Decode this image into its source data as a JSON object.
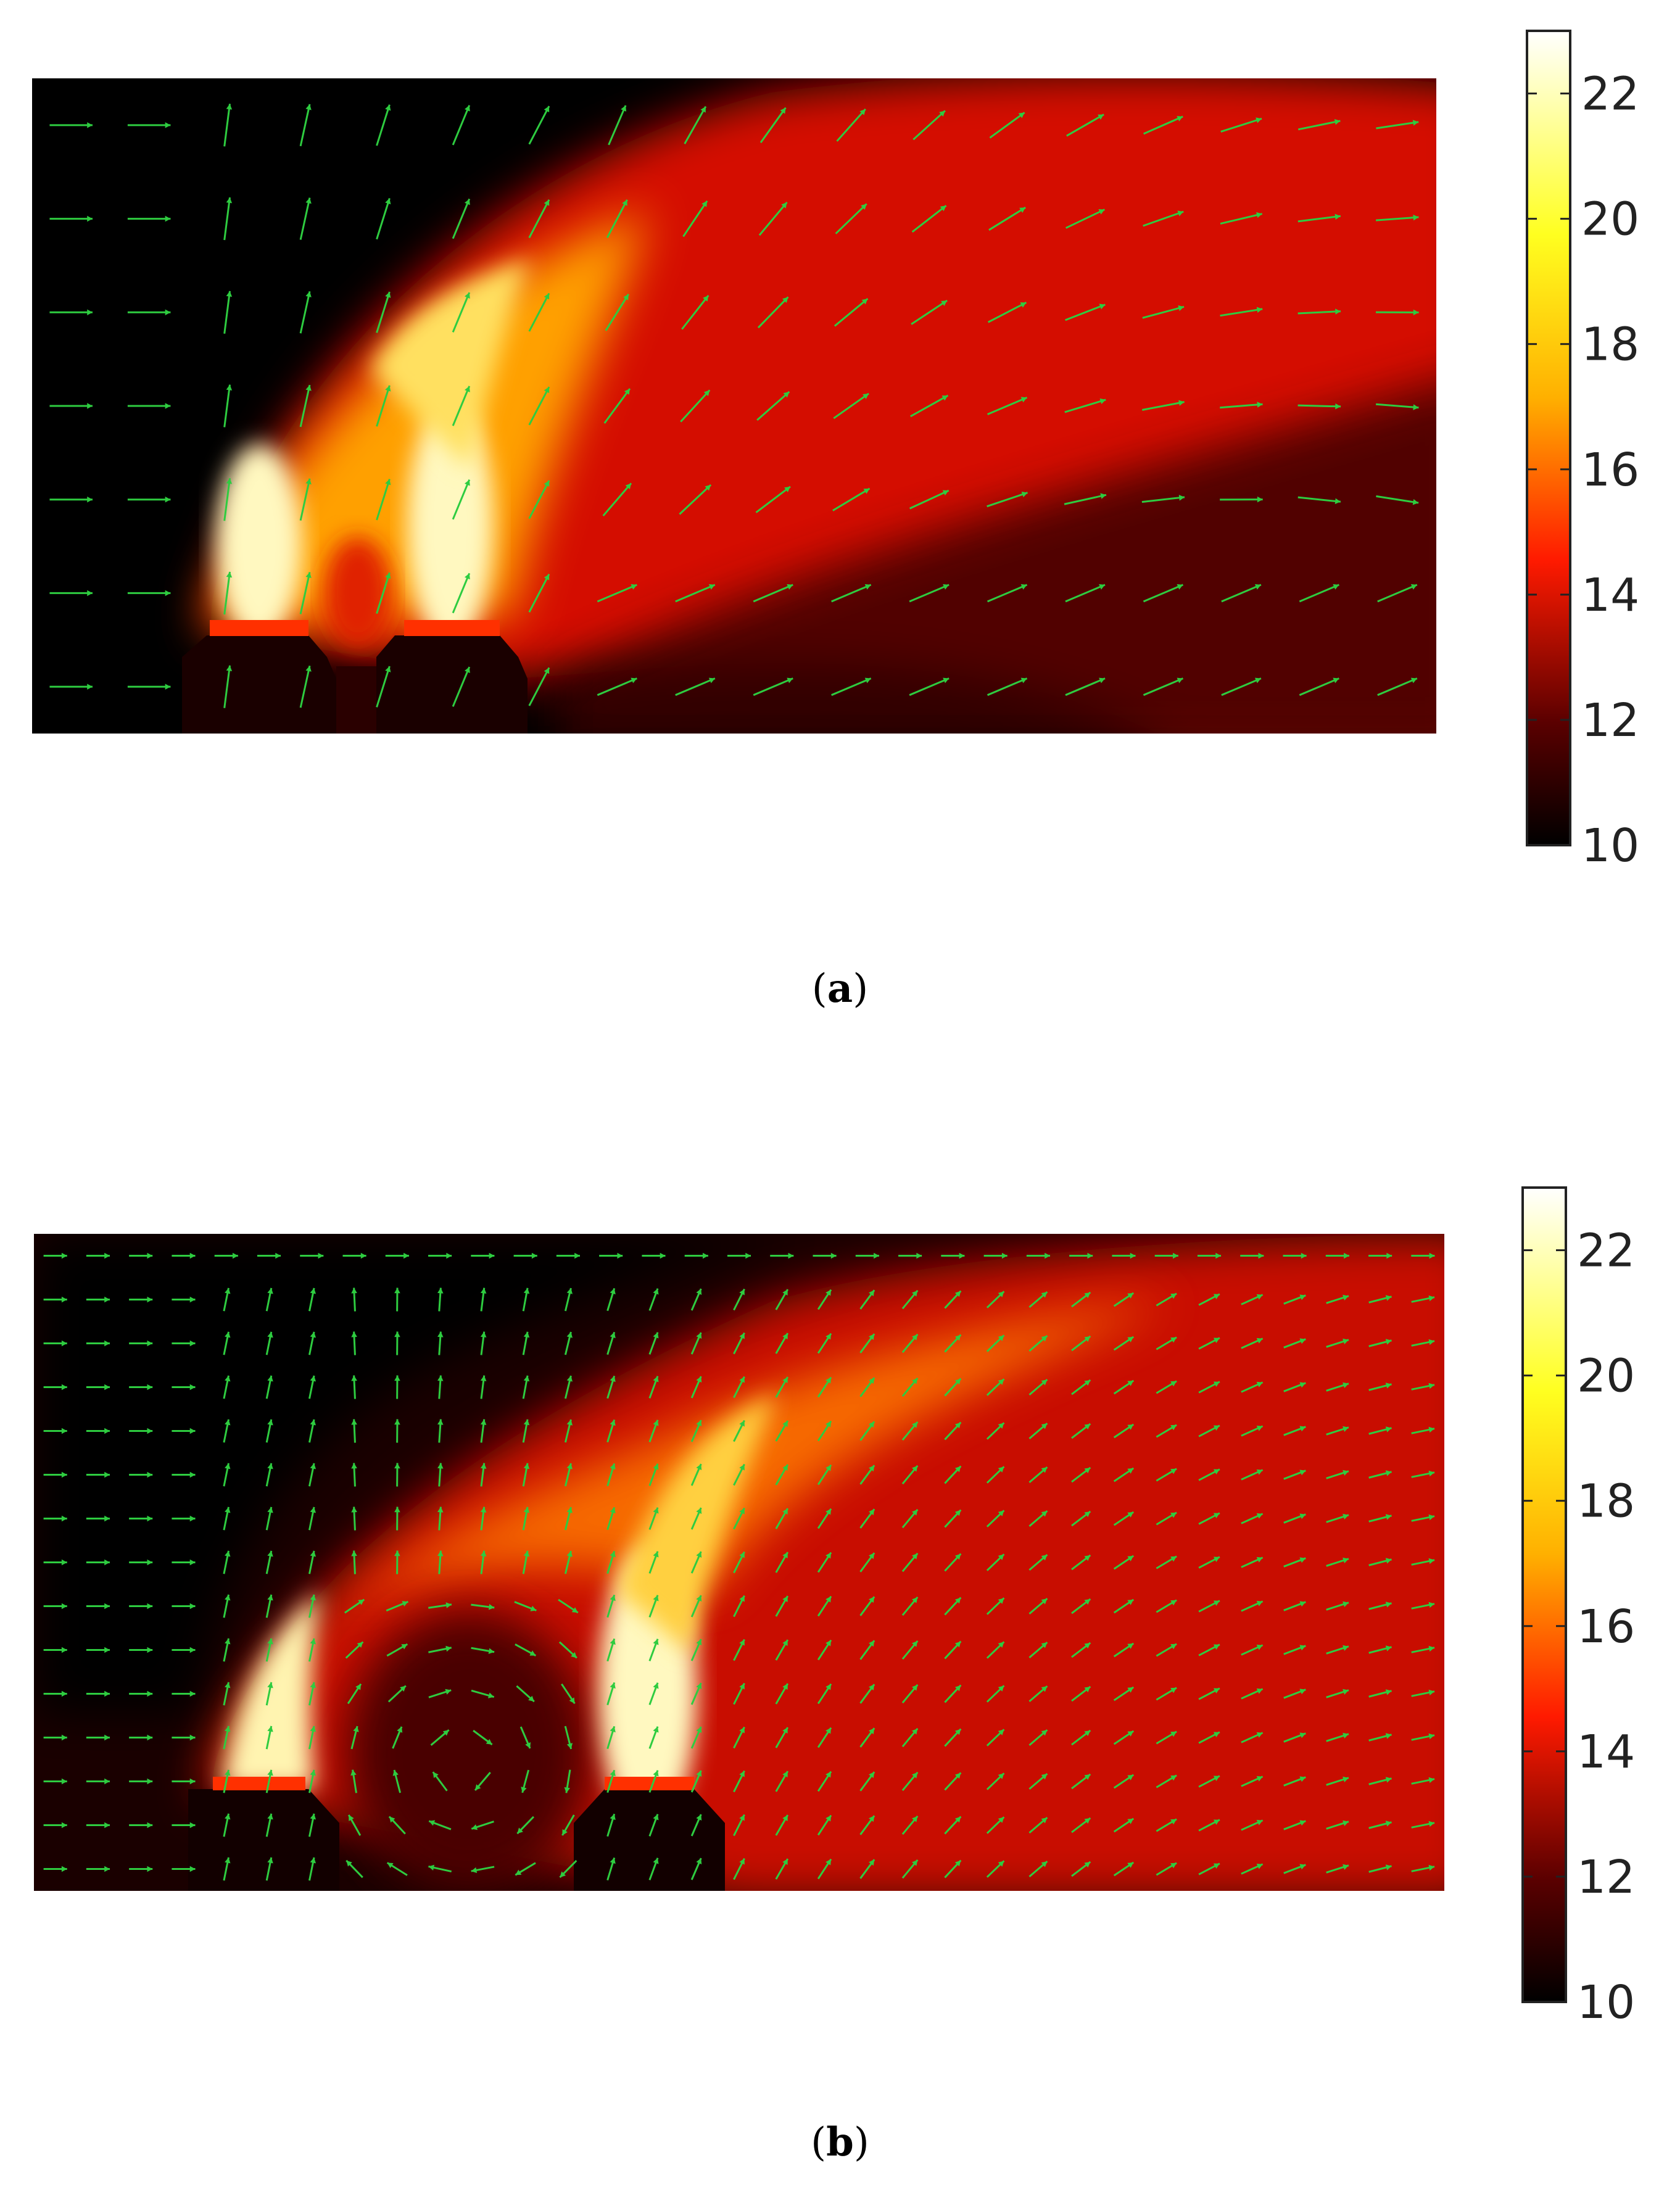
{
  "chart_data": [
    {
      "type": "heatmap",
      "panel_label": "a",
      "colorbar": {
        "ticks": [
          10,
          12,
          14,
          16,
          18,
          20,
          22
        ],
        "range": [
          10,
          23
        ],
        "colors": {
          "min": "#000000",
          "low": "#5a0000",
          "mid": "#ff1a00",
          "high": "#ffb000",
          "upper": "#ffff20",
          "max": "#ffffff"
        }
      },
      "vector_overlay": {
        "color": "#2ecc40",
        "grid_rows": 7,
        "grid_cols": 18
      }
    },
    {
      "type": "heatmap",
      "panel_label": "b",
      "colorbar": {
        "ticks": [
          10,
          12,
          14,
          16,
          18,
          20,
          22
        ],
        "range": [
          10,
          23
        ],
        "colors": {
          "min": "#000000",
          "low": "#5a0000",
          "mid": "#ff1a00",
          "high": "#ffb000",
          "upper": "#ffff20",
          "max": "#ffffff"
        }
      },
      "vector_overlay": {
        "color": "#2ecc40",
        "grid_rows": 15,
        "grid_cols": 33
      }
    }
  ]
}
